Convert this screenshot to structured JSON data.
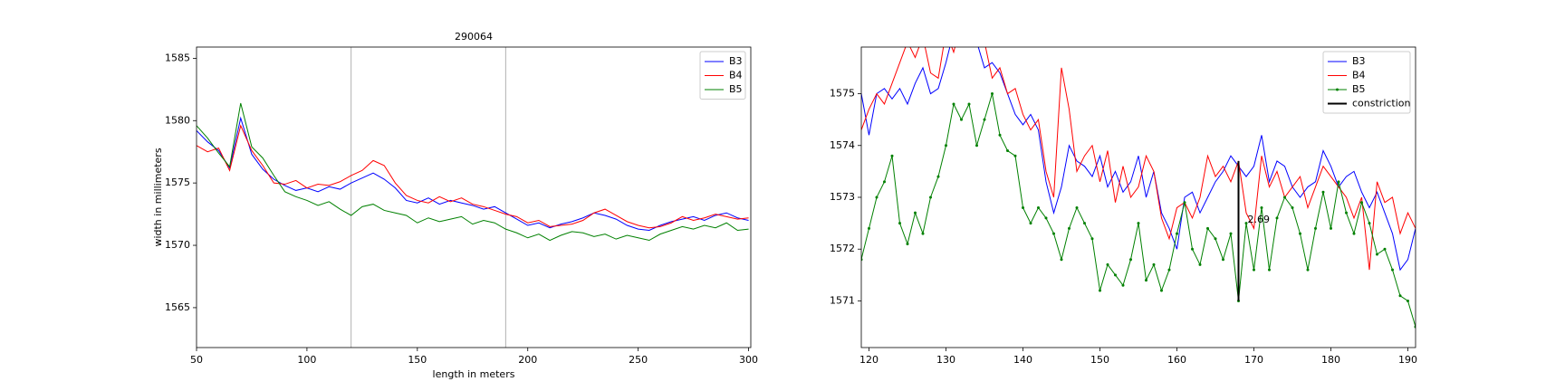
{
  "chart_data": [
    {
      "type": "line",
      "title": "290064",
      "x_label": "length in meters",
      "y_label": "width in millimeters",
      "x": [
        50,
        55,
        60,
        65,
        70,
        75,
        80,
        85,
        90,
        95,
        100,
        105,
        110,
        115,
        120,
        125,
        130,
        135,
        140,
        145,
        150,
        155,
        160,
        165,
        170,
        175,
        180,
        185,
        190,
        195,
        200,
        205,
        210,
        215,
        220,
        225,
        230,
        235,
        240,
        245,
        250,
        255,
        260,
        265,
        270,
        275,
        280,
        285,
        290,
        295,
        300
      ],
      "series": [
        {
          "name": "B3",
          "color": "#0000ff",
          "values": [
            1579.2,
            1578.3,
            1577.6,
            1576.2,
            1580.2,
            1577.3,
            1576.1,
            1575.3,
            1574.8,
            1574.4,
            1574.6,
            1574.3,
            1574.7,
            1574.5,
            1575.0,
            1575.4,
            1575.8,
            1575.3,
            1574.6,
            1573.6,
            1573.4,
            1573.8,
            1573.3,
            1573.6,
            1573.4,
            1573.2,
            1572.9,
            1573.1,
            1572.6,
            1572.1,
            1571.6,
            1571.8,
            1571.4,
            1571.7,
            1571.9,
            1572.2,
            1572.6,
            1572.4,
            1572.1,
            1571.6,
            1571.3,
            1571.2,
            1571.6,
            1571.9,
            1572.1,
            1572.3,
            1572.0,
            1572.4,
            1572.6,
            1572.2,
            1572.0
          ]
        },
        {
          "name": "B4",
          "color": "#ff0000",
          "values": [
            1578.0,
            1577.5,
            1577.8,
            1576.0,
            1579.6,
            1577.6,
            1576.4,
            1575.0,
            1574.9,
            1575.2,
            1574.6,
            1574.9,
            1574.8,
            1575.1,
            1575.6,
            1576.0,
            1576.8,
            1576.4,
            1575.0,
            1574.0,
            1573.6,
            1573.4,
            1573.9,
            1573.5,
            1573.8,
            1573.3,
            1573.1,
            1572.8,
            1572.5,
            1572.3,
            1571.8,
            1572.0,
            1571.5,
            1571.6,
            1571.7,
            1572.0,
            1572.6,
            1572.9,
            1572.4,
            1571.9,
            1571.6,
            1571.4,
            1571.5,
            1571.8,
            1572.3,
            1572.0,
            1572.2,
            1572.5,
            1572.3,
            1572.1,
            1572.2
          ]
        },
        {
          "name": "B5",
          "color": "#008000",
          "values": [
            1579.6,
            1578.6,
            1577.4,
            1576.3,
            1581.4,
            1577.9,
            1577.0,
            1575.6,
            1574.3,
            1573.9,
            1573.6,
            1573.2,
            1573.5,
            1572.9,
            1572.4,
            1573.1,
            1573.3,
            1572.8,
            1572.6,
            1572.4,
            1571.8,
            1572.2,
            1571.9,
            1572.1,
            1572.3,
            1571.7,
            1572.0,
            1571.8,
            1571.3,
            1571.0,
            1570.6,
            1570.9,
            1570.4,
            1570.8,
            1571.1,
            1571.0,
            1570.7,
            1570.9,
            1570.5,
            1570.8,
            1570.6,
            1570.4,
            1570.9,
            1571.2,
            1571.5,
            1571.3,
            1571.6,
            1571.4,
            1571.8,
            1571.2,
            1571.3
          ]
        }
      ],
      "vlines": [
        120,
        190
      ],
      "vline_color": "#b0b0b0",
      "xlim": [
        50,
        301
      ],
      "ylim": [
        1561.8,
        1585.9
      ],
      "xticks": [
        50,
        100,
        150,
        200,
        250,
        300
      ],
      "yticks": [
        1565,
        1570,
        1575,
        1580,
        1585
      ],
      "legend": "upper right"
    },
    {
      "type": "line",
      "x": [
        119,
        120,
        121,
        122,
        123,
        124,
        125,
        126,
        127,
        128,
        129,
        130,
        131,
        132,
        133,
        134,
        135,
        136,
        137,
        138,
        139,
        140,
        141,
        142,
        143,
        144,
        145,
        146,
        147,
        148,
        149,
        150,
        151,
        152,
        153,
        154,
        155,
        156,
        157,
        158,
        159,
        160,
        161,
        162,
        163,
        164,
        165,
        166,
        167,
        168,
        169,
        170,
        171,
        172,
        173,
        174,
        175,
        176,
        177,
        178,
        179,
        180,
        181,
        182,
        183,
        184,
        185,
        186,
        187,
        188,
        189,
        190,
        191
      ],
      "series": [
        {
          "name": "B3",
          "color": "#0000ff",
          "values": [
            1575.0,
            1574.2,
            1575.0,
            1575.1,
            1574.9,
            1575.1,
            1574.8,
            1575.2,
            1575.5,
            1575.0,
            1575.1,
            1575.6,
            1576.2,
            1576.0,
            1576.3,
            1576.0,
            1575.5,
            1575.6,
            1575.4,
            1575.0,
            1574.6,
            1574.4,
            1574.6,
            1574.3,
            1573.3,
            1572.7,
            1573.2,
            1574.0,
            1573.7,
            1573.6,
            1573.4,
            1573.8,
            1573.2,
            1573.5,
            1573.1,
            1573.3,
            1573.8,
            1573.0,
            1573.5,
            1572.7,
            1572.4,
            1572.0,
            1573.0,
            1573.1,
            1572.7,
            1573.0,
            1573.3,
            1573.5,
            1573.8,
            1573.6,
            1573.4,
            1573.6,
            1574.2,
            1573.3,
            1573.7,
            1573.6,
            1573.2,
            1573.0,
            1573.2,
            1573.3,
            1573.9,
            1573.6,
            1573.2,
            1573.4,
            1573.5,
            1573.1,
            1572.8,
            1573.1,
            1572.7,
            1572.3,
            1571.6,
            1571.8,
            1572.4
          ]
        },
        {
          "name": "B4",
          "color": "#ff0000",
          "values": [
            1574.3,
            1574.7,
            1575.0,
            1574.8,
            1575.2,
            1575.6,
            1576.0,
            1575.7,
            1576.1,
            1575.4,
            1575.3,
            1576.2,
            1575.8,
            1576.4,
            1576.1,
            1576.3,
            1576.0,
            1575.3,
            1575.5,
            1575.0,
            1575.1,
            1574.6,
            1574.3,
            1574.5,
            1573.5,
            1573.0,
            1575.5,
            1574.7,
            1573.5,
            1573.8,
            1574.0,
            1573.3,
            1573.9,
            1572.9,
            1573.6,
            1573.0,
            1573.2,
            1573.8,
            1573.5,
            1572.6,
            1572.2,
            1572.8,
            1572.9,
            1572.6,
            1573.0,
            1573.8,
            1573.4,
            1573.6,
            1573.3,
            1573.7,
            1572.7,
            1572.4,
            1573.8,
            1573.2,
            1573.5,
            1573.0,
            1573.2,
            1573.4,
            1572.8,
            1573.2,
            1573.6,
            1573.4,
            1573.2,
            1573.0,
            1572.6,
            1573.0,
            1571.6,
            1573.3,
            1572.9,
            1573.0,
            1572.3,
            1572.7,
            1572.4
          ]
        },
        {
          "name": "B5",
          "color": "#008000",
          "marker": true,
          "values": [
            1571.8,
            1572.4,
            1573.0,
            1573.3,
            1573.8,
            1572.5,
            1572.1,
            1572.7,
            1572.3,
            1573.0,
            1573.4,
            1574.0,
            1574.8,
            1574.5,
            1574.8,
            1574.0,
            1574.5,
            1575.0,
            1574.2,
            1573.9,
            1573.8,
            1572.8,
            1572.5,
            1572.8,
            1572.6,
            1572.3,
            1571.8,
            1572.4,
            1572.8,
            1572.5,
            1572.2,
            1571.2,
            1571.7,
            1571.5,
            1571.3,
            1571.8,
            1572.5,
            1571.4,
            1571.7,
            1571.2,
            1571.6,
            1572.3,
            1572.9,
            1572.0,
            1571.7,
            1572.4,
            1572.2,
            1571.8,
            1572.3,
            1571.0,
            1572.5,
            1571.6,
            1572.8,
            1571.6,
            1572.6,
            1573.0,
            1572.8,
            1572.3,
            1571.6,
            1572.4,
            1573.1,
            1572.4,
            1573.3,
            1572.7,
            1572.3,
            1572.9,
            1572.5,
            1571.9,
            1572.0,
            1571.6,
            1571.1,
            1571.0,
            1570.5
          ]
        }
      ],
      "constriction": {
        "name": "constriction",
        "color": "#000000",
        "x": 168,
        "y": [
          1571.0,
          1573.7
        ],
        "label": "2.69"
      },
      "xlim": [
        119,
        191
      ],
      "ylim": [
        1570.1,
        1575.9
      ],
      "xticks": [
        120,
        130,
        140,
        150,
        160,
        170,
        180,
        190
      ],
      "yticks": [
        1571,
        1572,
        1573,
        1574,
        1575
      ],
      "legend": "upper right"
    }
  ]
}
